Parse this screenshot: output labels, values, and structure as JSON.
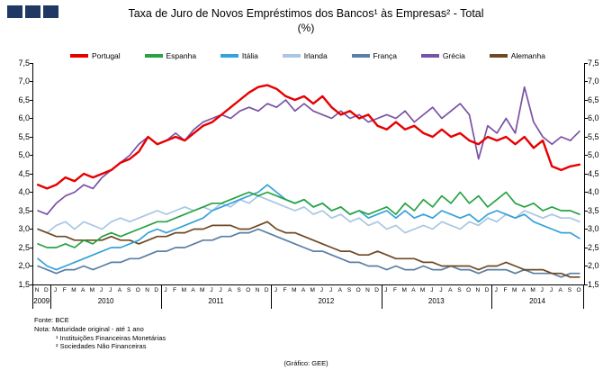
{
  "page": {
    "logo_color": "#1f3864",
    "footer": {
      "fonte": "Fonte: BCE",
      "nota": "Nota: Maturidade original - até 1 ano",
      "note1": "¹ Instituições Financeiras Monetárias",
      "note2": "² Sociedades Não Financeiras",
      "credit": "(Gráfico: GEE)"
    }
  },
  "chart_data": {
    "type": "line",
    "title": "Taxa de Juro de Novos Empréstimos dos Bancos¹ às Empresas² - Total",
    "subtitle": "(%)",
    "ylabel": "%",
    "ylim": [
      1.5,
      7.5
    ],
    "grid": false,
    "legend_position": "top",
    "y_ticks": [
      "7,5",
      "7,0",
      "6,5",
      "6,0",
      "5,5",
      "5,0",
      "4,5",
      "4,0",
      "3,5",
      "3,0",
      "2,5",
      "2,0",
      "1,5"
    ],
    "x_labels": [
      "N",
      "D",
      "J",
      "F",
      "M",
      "A",
      "M",
      "J",
      "J",
      "A",
      "S",
      "O",
      "N",
      "D",
      "J",
      "F",
      "M",
      "A",
      "M",
      "J",
      "J",
      "A",
      "S",
      "O",
      "N",
      "D",
      "J",
      "F",
      "M",
      "A",
      "M",
      "J",
      "J",
      "A",
      "S",
      "O",
      "N",
      "D",
      "J",
      "F",
      "M",
      "A",
      "M",
      "J",
      "J",
      "A",
      "S",
      "O",
      "N",
      "D",
      "J",
      "F",
      "M",
      "A",
      "M",
      "J",
      "J",
      "A",
      "S",
      "O"
    ],
    "years": [
      {
        "label": "2009",
        "months": 2
      },
      {
        "label": "2010",
        "months": 12
      },
      {
        "label": "2011",
        "months": 12
      },
      {
        "label": "2012",
        "months": 12
      },
      {
        "label": "2013",
        "months": 12
      },
      {
        "label": "2014",
        "months": 10
      }
    ],
    "series": [
      {
        "name": "Portugal",
        "color": "#e60000",
        "values": [
          4.2,
          4.1,
          4.2,
          4.4,
          4.3,
          4.5,
          4.4,
          4.5,
          4.6,
          4.8,
          4.9,
          5.1,
          5.5,
          5.3,
          5.4,
          5.5,
          5.4,
          5.6,
          5.8,
          5.9,
          6.1,
          6.3,
          6.5,
          6.7,
          6.85,
          6.9,
          6.8,
          6.6,
          6.5,
          6.6,
          6.4,
          6.6,
          6.3,
          6.1,
          6.2,
          6.0,
          6.1,
          5.8,
          5.7,
          5.9,
          5.7,
          5.8,
          5.6,
          5.5,
          5.7,
          5.5,
          5.6,
          5.4,
          5.3,
          5.5,
          5.4,
          5.5,
          5.3,
          5.5,
          5.2,
          5.4,
          4.7,
          4.6,
          4.7,
          4.75
        ]
      },
      {
        "name": "Espanha",
        "color": "#27a343",
        "values": [
          2.6,
          2.5,
          2.5,
          2.6,
          2.5,
          2.7,
          2.6,
          2.8,
          2.9,
          2.8,
          2.9,
          3.0,
          3.1,
          3.2,
          3.2,
          3.3,
          3.4,
          3.5,
          3.6,
          3.7,
          3.7,
          3.8,
          3.9,
          4.0,
          3.9,
          4.0,
          3.9,
          3.8,
          3.7,
          3.8,
          3.6,
          3.7,
          3.5,
          3.6,
          3.4,
          3.5,
          3.4,
          3.5,
          3.6,
          3.4,
          3.7,
          3.5,
          3.8,
          3.6,
          3.9,
          3.7,
          4.0,
          3.7,
          3.9,
          3.6,
          3.8,
          4.0,
          3.7,
          3.6,
          3.7,
          3.5,
          3.6,
          3.5,
          3.5,
          3.4
        ]
      },
      {
        "name": "Itália",
        "color": "#36a2d9",
        "values": [
          2.2,
          2.0,
          1.9,
          2.0,
          2.1,
          2.2,
          2.3,
          2.4,
          2.5,
          2.5,
          2.6,
          2.7,
          2.9,
          3.0,
          2.9,
          3.0,
          3.1,
          3.2,
          3.3,
          3.5,
          3.6,
          3.7,
          3.8,
          3.9,
          4.0,
          4.2,
          4.0,
          3.8,
          3.7,
          3.8,
          3.6,
          3.7,
          3.5,
          3.6,
          3.4,
          3.5,
          3.3,
          3.4,
          3.5,
          3.3,
          3.5,
          3.3,
          3.4,
          3.3,
          3.5,
          3.4,
          3.3,
          3.4,
          3.2,
          3.4,
          3.5,
          3.4,
          3.3,
          3.4,
          3.2,
          3.1,
          3.0,
          2.9,
          2.9,
          2.75
        ]
      },
      {
        "name": "Irlanda",
        "color": "#a9c7e3",
        "values": [
          3.0,
          2.9,
          3.1,
          3.2,
          3.0,
          3.2,
          3.1,
          3.0,
          3.2,
          3.3,
          3.2,
          3.3,
          3.4,
          3.5,
          3.4,
          3.5,
          3.6,
          3.5,
          3.6,
          3.5,
          3.7,
          3.6,
          3.8,
          3.7,
          3.9,
          3.8,
          3.7,
          3.6,
          3.5,
          3.6,
          3.4,
          3.5,
          3.3,
          3.4,
          3.2,
          3.3,
          3.1,
          3.2,
          3.0,
          3.1,
          2.9,
          3.0,
          3.1,
          3.0,
          3.2,
          3.1,
          3.0,
          3.2,
          3.1,
          3.3,
          3.2,
          3.4,
          3.3,
          3.5,
          3.4,
          3.3,
          3.4,
          3.3,
          3.3,
          3.2
        ]
      },
      {
        "name": "França",
        "color": "#5a7fa5",
        "values": [
          2.0,
          1.9,
          1.8,
          1.9,
          1.9,
          2.0,
          1.9,
          2.0,
          2.1,
          2.1,
          2.2,
          2.2,
          2.3,
          2.4,
          2.4,
          2.5,
          2.5,
          2.6,
          2.7,
          2.7,
          2.8,
          2.8,
          2.9,
          2.9,
          3.0,
          2.9,
          2.8,
          2.7,
          2.6,
          2.5,
          2.4,
          2.4,
          2.3,
          2.2,
          2.1,
          2.1,
          2.0,
          2.0,
          1.9,
          2.0,
          1.9,
          1.9,
          2.0,
          1.9,
          1.9,
          2.0,
          1.9,
          1.9,
          1.8,
          1.9,
          1.9,
          1.9,
          1.8,
          1.9,
          1.8,
          1.8,
          1.8,
          1.7,
          1.8,
          1.8
        ]
      },
      {
        "name": "Grécia",
        "color": "#7a52a5",
        "values": [
          3.5,
          3.4,
          3.7,
          3.9,
          4.0,
          4.2,
          4.1,
          4.4,
          4.6,
          4.8,
          5.0,
          5.3,
          5.5,
          5.3,
          5.4,
          5.6,
          5.4,
          5.7,
          5.9,
          6.0,
          6.1,
          6.0,
          6.2,
          6.3,
          6.2,
          6.4,
          6.3,
          6.5,
          6.2,
          6.4,
          6.2,
          6.1,
          6.0,
          6.2,
          6.0,
          6.1,
          5.9,
          6.0,
          6.1,
          6.0,
          6.2,
          5.9,
          6.1,
          6.3,
          6.0,
          6.2,
          6.4,
          6.1,
          4.9,
          5.8,
          5.6,
          6.0,
          5.6,
          6.85,
          5.9,
          5.5,
          5.3,
          5.5,
          5.4,
          5.65
        ]
      },
      {
        "name": "Alemanha",
        "color": "#6e4a24",
        "values": [
          3.0,
          2.9,
          2.8,
          2.8,
          2.7,
          2.7,
          2.7,
          2.7,
          2.8,
          2.7,
          2.7,
          2.6,
          2.7,
          2.8,
          2.8,
          2.9,
          2.9,
          3.0,
          3.0,
          3.1,
          3.1,
          3.1,
          3.0,
          3.0,
          3.1,
          3.2,
          3.0,
          2.9,
          2.9,
          2.8,
          2.7,
          2.6,
          2.5,
          2.4,
          2.4,
          2.3,
          2.3,
          2.4,
          2.3,
          2.2,
          2.2,
          2.2,
          2.1,
          2.1,
          2.0,
          2.0,
          2.0,
          2.0,
          1.9,
          2.0,
          2.0,
          2.1,
          2.0,
          1.9,
          1.9,
          1.9,
          1.8,
          1.8,
          1.7,
          1.7
        ]
      }
    ]
  }
}
